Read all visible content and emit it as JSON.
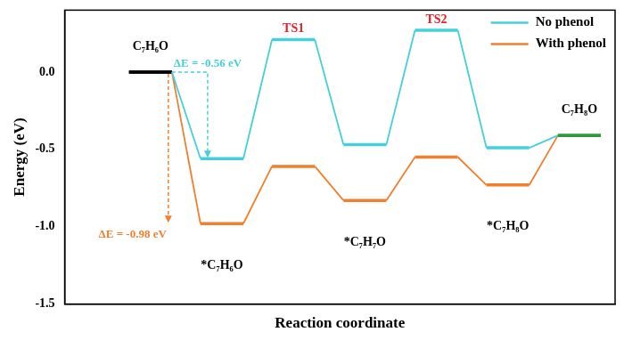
{
  "chart_data": {
    "type": "line",
    "x_label": "Reaction coordinate",
    "y_label": "Energy (eV)",
    "categories": [
      "C₇H₆O",
      "*C₇H₆O",
      "TS1",
      "*C₇H₇O",
      "TS2",
      "*C₇H₈O",
      "C₇H₈O"
    ],
    "series": [
      {
        "name": "No phenol",
        "color": "#45d0d8",
        "colors": [
          "#000000",
          "#45d0d8",
          "#45d0d8",
          "#45d0d8",
          "#45d0d8",
          "#45d0d8",
          "#2e9a3c"
        ],
        "values": [
          0,
          -0.56,
          0.21,
          -0.47,
          0.27,
          -0.49,
          -0.41
        ]
      },
      {
        "name": "With phenol",
        "color": "#f07f2e",
        "colors": [
          "#000000",
          "#f07f2e",
          "#f07f2e",
          "#f07f2e",
          "#f07f2e",
          "#f07f2e",
          "#2e9a3c"
        ],
        "values": [
          0,
          -0.98,
          -0.61,
          -0.83,
          -0.55,
          -0.73,
          -0.41
        ]
      }
    ],
    "annotations": [
      "ΔE = -0.56 eV",
      "ΔE = -0.98 eV"
    ],
    "ylim": [
      -1.5,
      0.4
    ],
    "yticks": [
      -1.5,
      {
        "value": -1.0,
        "label": "-1.0"
      },
      -0.5,
      {
        "value": 0,
        "label": "0.0"
      }
    ],
    "grid": false,
    "legend": "upper right",
    "tick_labels": "y"
  }
}
